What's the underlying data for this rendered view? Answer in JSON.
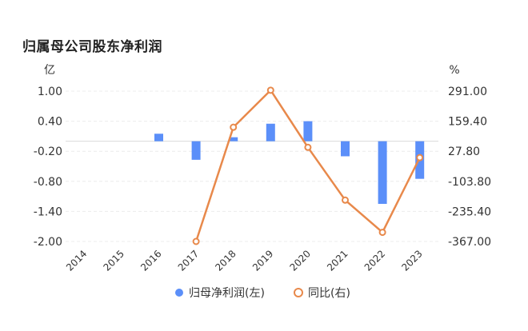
{
  "header": {
    "title": "归属母公司股东净利润"
  },
  "chart_data": {
    "type": "bar+line",
    "categories": [
      "2014",
      "2015",
      "2016",
      "2017",
      "2018",
      "2019",
      "2020",
      "2021",
      "2022",
      "2023"
    ],
    "left_axis": {
      "unit": "亿",
      "ticks": [
        "1.00",
        "0.40",
        "-0.20",
        "-0.80",
        "-1.40",
        "-2.00"
      ],
      "range": [
        -2.0,
        1.0
      ]
    },
    "right_axis": {
      "unit": "%",
      "ticks": [
        "291.00",
        "159.40",
        "27.80",
        "-103.80",
        "-235.40",
        "-367.00"
      ],
      "range": [
        -367.0,
        291.0
      ]
    },
    "series": [
      {
        "name": "归母净利润(左)",
        "kind": "bar",
        "axis": "left",
        "color": "#5B8FF9",
        "values": [
          null,
          null,
          0.15,
          -0.37,
          0.08,
          0.35,
          0.4,
          -0.3,
          -1.25,
          -0.75
        ]
      },
      {
        "name": "同比(右)",
        "kind": "line",
        "axis": "right",
        "color": "#E8894B",
        "values": [
          null,
          null,
          null,
          -367,
          133,
          295,
          45,
          -186,
          -327,
          0
        ]
      }
    ],
    "legend": {
      "position": "bottom-center"
    },
    "grid": true
  }
}
